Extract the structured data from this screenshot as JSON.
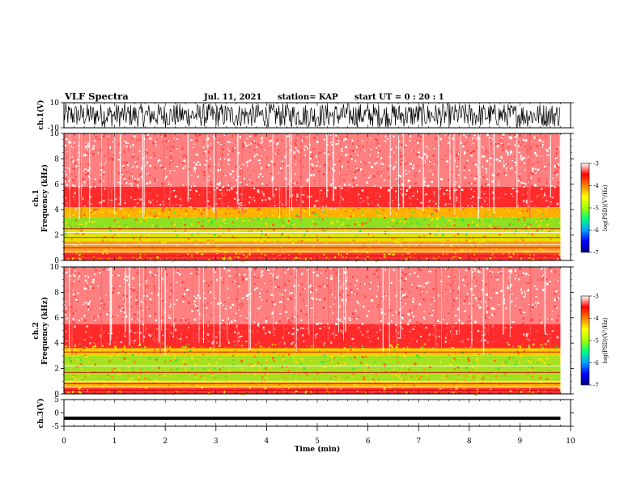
{
  "header": {
    "title": "VLF Spectra",
    "date": "Jul. 11, 2021",
    "station": "station= KAP",
    "start": "start  UT =  0 : 20 : 1"
  },
  "chart_data": [
    {
      "type": "line",
      "name": "ch1-waveform",
      "ylabel": "ch.1(V)",
      "ylim": [
        -10,
        10
      ],
      "yticks": [
        "10",
        "-10"
      ],
      "x_range_min": [
        0,
        9.8
      ],
      "description_level": "dense noise, amplitude mostly between -10 and 10"
    },
    {
      "type": "heatmap",
      "name": "ch1-spectrogram",
      "ylabel": "ch.1 Frequency (kHz)",
      "ylim": [
        0,
        10
      ],
      "yticks": [
        "0",
        "2",
        "4",
        "6",
        "8",
        "10"
      ],
      "x_range_min": [
        0,
        9.8
      ],
      "bands_khz": [
        {
          "from": 0,
          "to": 0.6,
          "color": "#ff3030"
        },
        {
          "from": 0.6,
          "to": 1.5,
          "color": "#ff9a20"
        },
        {
          "from": 1.5,
          "to": 2.4,
          "color": "#e6e000"
        },
        {
          "from": 2.4,
          "to": 3.4,
          "color": "#8ee020"
        },
        {
          "from": 3.4,
          "to": 4.2,
          "color": "#ffb000"
        },
        {
          "from": 4.2,
          "to": 5.8,
          "color": "#ff2a2a"
        },
        {
          "from": 5.8,
          "to": 10,
          "color": "#ff8080"
        }
      ],
      "lines_khz": [
        0.35,
        0.7,
        1.0,
        1.25,
        1.8,
        2.2,
        2.5
      ]
    },
    {
      "type": "heatmap",
      "name": "ch2-spectrogram",
      "ylabel": "ch.2 Frequency (kHz)",
      "ylim": [
        0,
        10
      ],
      "yticks": [
        "0",
        "2",
        "4",
        "6",
        "8",
        "10"
      ],
      "x_range_min": [
        0,
        9.8
      ],
      "bands_khz": [
        {
          "from": 0,
          "to": 0.5,
          "color": "#ff3030"
        },
        {
          "from": 0.5,
          "to": 1.0,
          "color": "#ffb000"
        },
        {
          "from": 1.0,
          "to": 3.0,
          "color": "#a6e020"
        },
        {
          "from": 3.0,
          "to": 3.6,
          "color": "#ffcc00"
        },
        {
          "from": 3.6,
          "to": 5.5,
          "color": "#ff2a2a"
        },
        {
          "from": 5.5,
          "to": 10,
          "color": "#ff8080"
        }
      ],
      "lines_khz": [
        0.3,
        0.55,
        0.8,
        1.0,
        1.7,
        2.2,
        3.3
      ]
    },
    {
      "type": "line",
      "name": "ch3-waveform",
      "ylabel": "ch.3(V)",
      "ylim": [
        -5,
        5
      ],
      "yticks": [
        "5",
        "0",
        "-5"
      ],
      "x_range_min": [
        0,
        9.8
      ],
      "baseline_v": -2
    }
  ],
  "xaxis": {
    "label": "Time  (min)",
    "range": [
      0,
      10
    ],
    "ticks": [
      "0",
      "1",
      "2",
      "3",
      "4",
      "5",
      "6",
      "7",
      "8",
      "9",
      "10"
    ]
  },
  "colorbar": {
    "label": "log(PSD)(V²/Hz)",
    "range": [
      -7,
      -3
    ],
    "ticks": [
      "-3",
      "-4",
      "-5",
      "-6",
      "-7"
    ],
    "colors": [
      "#000080",
      "#0000ff",
      "#00a0ff",
      "#00ff80",
      "#a0ff00",
      "#ffff00",
      "#ff8000",
      "#ff0000",
      "#ffffff"
    ]
  }
}
